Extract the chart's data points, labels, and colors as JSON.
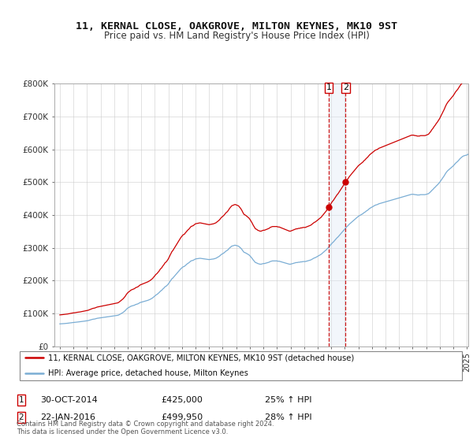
{
  "title": "11, KERNAL CLOSE, OAKGROVE, MILTON KEYNES, MK10 9ST",
  "subtitle": "Price paid vs. HM Land Registry's House Price Index (HPI)",
  "legend_line1": "11, KERNAL CLOSE, OAKGROVE, MILTON KEYNES, MK10 9ST (detached house)",
  "legend_line2": "HPI: Average price, detached house, Milton Keynes",
  "annotation1": {
    "label": "1",
    "date": "30-OCT-2014",
    "price": "£425,000",
    "pct": "25% ↑ HPI"
  },
  "annotation2": {
    "label": "2",
    "date": "22-JAN-2016",
    "price": "£499,950",
    "pct": "28% ↑ HPI"
  },
  "footer": "Contains HM Land Registry data © Crown copyright and database right 2024.\nThis data is licensed under the Open Government Licence v3.0.",
  "red_color": "#cc0000",
  "blue_color": "#7aadd4",
  "annotation_vline_color": "#cc0000",
  "annotation_band_color": "#dce8f5",
  "ylim": [
    0,
    800000
  ],
  "yticks": [
    0,
    100000,
    200000,
    300000,
    400000,
    500000,
    600000,
    700000,
    800000
  ],
  "ytick_labels": [
    "£0",
    "£100K",
    "£200K",
    "£300K",
    "£400K",
    "£500K",
    "£600K",
    "£700K",
    "£800K"
  ],
  "hpi_monthly": [
    68000,
    68200,
    68500,
    68800,
    69000,
    69300,
    69600,
    70000,
    70500,
    71000,
    71500,
    72000,
    72300,
    72600,
    73000,
    73500,
    73800,
    74200,
    74500,
    75000,
    75500,
    76000,
    76500,
    77000,
    77500,
    78000,
    79000,
    80000,
    81000,
    82000,
    82500,
    83000,
    84000,
    85000,
    85500,
    86000,
    86500,
    87000,
    87500,
    88000,
    88500,
    89000,
    89500,
    90000,
    90500,
    91000,
    91500,
    92000,
    92500,
    93000,
    93500,
    94000,
    95000,
    97000,
    99000,
    101000,
    103000,
    106000,
    109000,
    113000,
    116000,
    118000,
    120000,
    122000,
    123000,
    124000,
    125000,
    127000,
    128000,
    129000,
    131000,
    133000,
    134000,
    135000,
    136000,
    137000,
    138000,
    139000,
    140000,
    141500,
    143000,
    145000,
    147000,
    150000,
    153000,
    156000,
    158000,
    161000,
    164000,
    168000,
    170000,
    174000,
    177000,
    181000,
    183000,
    186000,
    190000,
    195000,
    200000,
    205000,
    208000,
    212000,
    216000,
    220000,
    224000,
    228000,
    232000,
    236000,
    239000,
    242000,
    243000,
    246000,
    249000,
    252000,
    254000,
    257000,
    260000,
    261000,
    262000,
    264000,
    266000,
    266500,
    267000,
    267500,
    268000,
    267500,
    267000,
    266500,
    266000,
    265500,
    265000,
    264500,
    264000,
    264500,
    265000,
    265500,
    266000,
    267000,
    268000,
    270000,
    272000,
    274000,
    277000,
    280000,
    282000,
    284000,
    287000,
    290000,
    292000,
    295000,
    299000,
    302000,
    305000,
    306000,
    307000,
    308000,
    307000,
    306000,
    305000,
    302000,
    299000,
    295000,
    290000,
    286000,
    285000,
    283000,
    281000,
    279000,
    276000,
    272000,
    268000,
    263000,
    259000,
    255000,
    254000,
    252000,
    251000,
    250000,
    250000,
    251000,
    252000,
    252000,
    253000,
    254000,
    255000,
    256000,
    258000,
    259000,
    260000,
    260000,
    260000,
    260000,
    260000,
    259000,
    259000,
    258000,
    257000,
    256000,
    255000,
    254000,
    253000,
    252000,
    251000,
    250000,
    250000,
    251000,
    252000,
    253000,
    254000,
    255000,
    255000,
    256000,
    256000,
    257000,
    257000,
    258000,
    258000,
    258000,
    259000,
    260000,
    261000,
    262000,
    263000,
    265000,
    267000,
    269000,
    270000,
    272000,
    274000,
    276000,
    278000,
    280000,
    283000,
    286000,
    289000,
    292000,
    295000,
    299000,
    303000,
    307000,
    311000,
    315000,
    318000,
    322000,
    326000,
    330000,
    333000,
    337000,
    341000,
    345000,
    349000,
    353000,
    357000,
    361000,
    365000,
    368000,
    372000,
    375000,
    378000,
    381000,
    384000,
    387000,
    390000,
    393000,
    396000,
    398000,
    400000,
    402000,
    404000,
    407000,
    409000,
    412000,
    414000,
    417000,
    420000,
    422000,
    424000,
    426000,
    428000,
    430000,
    431000,
    432000,
    434000,
    435000,
    436000,
    437000,
    438000,
    439000,
    440000,
    441000,
    442000,
    443000,
    444000,
    445000,
    446000,
    447000,
    448000,
    449000,
    450000,
    451000,
    452000,
    453000,
    454000,
    455000,
    456000,
    457000,
    458000,
    459000,
    460000,
    461000,
    462000,
    463000,
    463000,
    463000,
    462000,
    462000,
    461000,
    461000,
    461000,
    462000,
    462000,
    462000,
    462000,
    462000,
    463000,
    464000,
    465000,
    468000,
    471000,
    475000,
    478000,
    482000,
    485000,
    489000,
    492000,
    496000,
    500000,
    505000,
    510000,
    515000,
    520000,
    526000,
    531000,
    535000,
    538000,
    541000,
    544000,
    547000,
    550000,
    554000,
    558000,
    561000,
    564000,
    568000,
    572000,
    575000,
    578000,
    580000,
    581000,
    582000,
    583000,
    585000,
    587000,
    589000,
    590000,
    590000,
    590000,
    589000,
    588000,
    587000,
    586000,
    585000,
    584000,
    582000,
    580000,
    578000,
    576000,
    574000,
    572000,
    570000,
    568000,
    567000,
    566000,
    565000,
    564000,
    563000,
    562000,
    561000,
    562000,
    563000,
    563000,
    564000,
    565000,
    566000,
    567000,
    568000
  ],
  "sale_year1": 2014.831,
  "sale_year2": 2016.058,
  "sale_value1": 425000,
  "sale_value2": 499950,
  "start_year": 1995.0,
  "end_year": 2024.92
}
